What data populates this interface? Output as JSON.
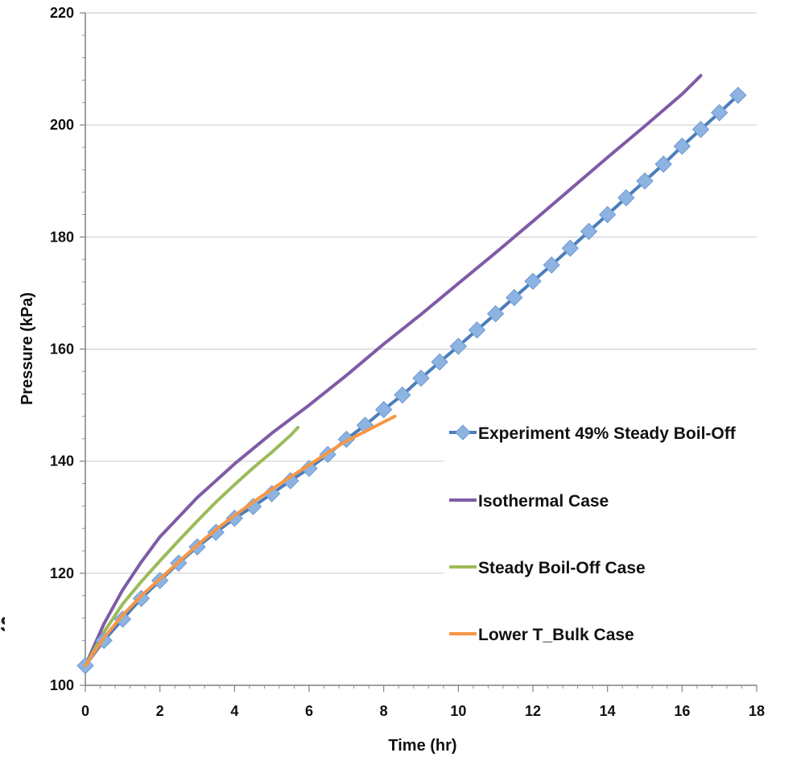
{
  "chart_data": {
    "type": "line",
    "title": "",
    "xlabel": "Time (hr)",
    "ylabel": "Pressure (kPa)",
    "xlim": [
      0,
      18
    ],
    "ylim": [
      100,
      220
    ],
    "x_ticks": [
      0,
      2,
      4,
      6,
      8,
      10,
      12,
      14,
      16,
      18
    ],
    "y_ticks": [
      100,
      120,
      140,
      160,
      180,
      200,
      220
    ],
    "grid": "horizontal",
    "legend_position": "center-right",
    "series": [
      {
        "name": "Experiment 49% Steady Boil-Off",
        "color": "#4a7ebb",
        "marker": "diamond",
        "marker_color": "#8db3e2",
        "x": [
          0,
          0.5,
          1,
          1.5,
          2,
          2.5,
          3,
          3.5,
          4,
          4.5,
          5,
          5.5,
          6,
          6.5,
          7,
          7.5,
          8,
          8.5,
          9,
          9.5,
          10,
          10.5,
          11,
          11.5,
          12,
          12.5,
          13,
          13.5,
          14,
          14.5,
          15,
          15.5,
          16,
          16.5,
          17,
          17.5
        ],
        "y": [
          103.5,
          108,
          111.8,
          115.5,
          118.7,
          121.8,
          124.7,
          127.3,
          129.8,
          131.9,
          134.2,
          136.5,
          138.7,
          141.2,
          143.9,
          146.4,
          149.2,
          151.8,
          154.8,
          157.7,
          160.5,
          163.4,
          166.3,
          169.2,
          172.1,
          175.0,
          178.0,
          181.0,
          184.0,
          187.0,
          190.0,
          193.0,
          196.2,
          199.2,
          202.2,
          205.3
        ]
      },
      {
        "name": "Isothermal Case",
        "color": "#7f5ba6",
        "x": [
          0,
          0.5,
          1,
          1.5,
          2,
          3,
          4,
          5,
          6,
          7,
          8,
          9,
          10,
          11,
          12,
          13,
          14,
          15,
          16,
          16.5
        ],
        "y": [
          103.5,
          111,
          117,
          122,
          126.5,
          133.5,
          139.5,
          145,
          150,
          155.3,
          160.9,
          166.2,
          171.7,
          177.2,
          182.8,
          188.5,
          194.2,
          199.8,
          205.5,
          208.8
        ]
      },
      {
        "name": "Steady Boil-Off Case",
        "color": "#9bbb59",
        "x": [
          0,
          0.5,
          1,
          1.5,
          2,
          2.5,
          3,
          3.5,
          4,
          4.5,
          5,
          5.5,
          5.7
        ],
        "y": [
          103.5,
          109.5,
          114.5,
          118.5,
          122.2,
          125.8,
          129.3,
          132.7,
          135.8,
          138.8,
          141.6,
          144.6,
          146
        ]
      },
      {
        "name": "Lower T_Bulk Case",
        "color": "#f79646",
        "x": [
          0,
          0.5,
          1,
          1.5,
          2,
          2.5,
          3,
          3.5,
          4,
          4.5,
          5,
          5.5,
          6,
          6.5,
          7,
          7.5,
          8,
          8.3
        ],
        "y": [
          103.5,
          108.5,
          112.5,
          116,
          119,
          122,
          125,
          127.8,
          130.3,
          132.7,
          135,
          137.2,
          139.3,
          141.5,
          143.6,
          145.3,
          147,
          148
        ]
      }
    ]
  },
  "stray_text": "S"
}
